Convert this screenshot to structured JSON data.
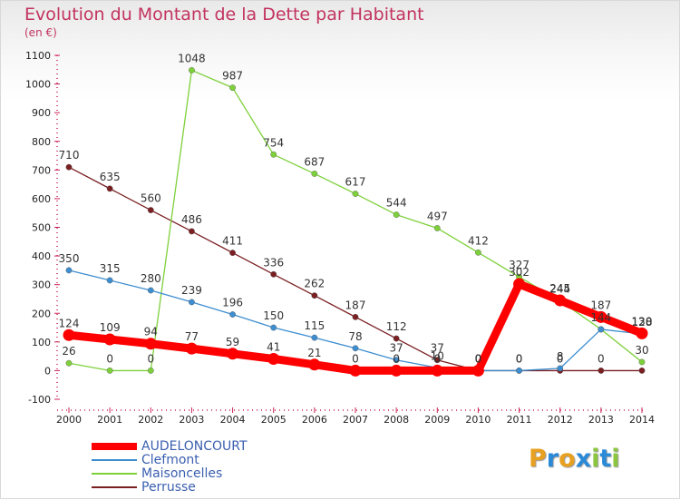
{
  "chart_data": {
    "type": "line",
    "title": "Evolution du Montant de la Dette par Habitant",
    "subtitle": "(en €)",
    "x": [
      "2000",
      "2001",
      "2002",
      "2003",
      "2004",
      "2005",
      "2006",
      "2007",
      "2008",
      "2009",
      "2010",
      "2011",
      "2012",
      "2013",
      "2014"
    ],
    "ylim": [
      -100,
      1100
    ],
    "yticks": [
      -100,
      0,
      100,
      200,
      300,
      400,
      500,
      600,
      700,
      800,
      900,
      1000,
      1100
    ],
    "grid": false,
    "legend_position": "bottom-left",
    "series": [
      {
        "name": "Perrusse",
        "color": "#7a1f22",
        "values": [
          710,
          635,
          560,
          486,
          411,
          336,
          262,
          187,
          112,
          37,
          0,
          0,
          0,
          0,
          0
        ],
        "labels": [
          "710",
          "635",
          "560",
          "486",
          "411",
          "336",
          "262",
          "187",
          "112",
          "37",
          "0",
          "0",
          "0",
          "0",
          null
        ]
      },
      {
        "name": "Maisoncelles",
        "color": "#7ed03b",
        "values": [
          26,
          0,
          0,
          1048,
          987,
          754,
          687,
          617,
          544,
          497,
          412,
          327,
          244,
          144,
          30
        ],
        "labels": [
          "26",
          "0",
          "0",
          "1048",
          "987",
          "754",
          "687",
          "617",
          "544",
          "497",
          "412",
          "327",
          "244",
          "144",
          "30"
        ]
      },
      {
        "name": "Clefmont",
        "color": "#3d8ed0",
        "values": [
          350,
          315,
          280,
          239,
          196,
          150,
          115,
          78,
          37,
          10,
          0,
          0,
          8,
          144,
          128
        ],
        "labels": [
          "350",
          "315",
          "280",
          "239",
          "196",
          "150",
          "115",
          "78",
          "37",
          "10",
          "0",
          "0",
          "8",
          null,
          "128"
        ]
      },
      {
        "name": "AUDELONCOURT",
        "color": "#ff0000",
        "values": [
          124,
          109,
          94,
          77,
          59,
          41,
          21,
          0,
          0,
          0,
          0,
          302,
          245,
          187,
          130
        ],
        "labels": [
          "124",
          "109",
          "94",
          "77",
          "59",
          "41",
          "21",
          "0",
          "0",
          "0",
          "0",
          "302",
          "245",
          "187",
          "130"
        ]
      }
    ],
    "legend": [
      {
        "name": "AUDELONCOURT",
        "color": "#ff0000"
      },
      {
        "name": "Clefmont",
        "color": "#3d8ed0"
      },
      {
        "name": "Maisoncelles",
        "color": "#7ed03b"
      },
      {
        "name": "Perrusse",
        "color": "#7a1f22"
      }
    ]
  },
  "logo": {
    "letters": [
      "P",
      "r",
      "o",
      "x",
      "i",
      "t",
      "i"
    ],
    "colors": [
      "#e8a020",
      "#2a8ad8",
      "#e8a020",
      "#2a8ad8",
      "#8cc63f",
      "#2a8ad8",
      "#8cc63f"
    ]
  }
}
